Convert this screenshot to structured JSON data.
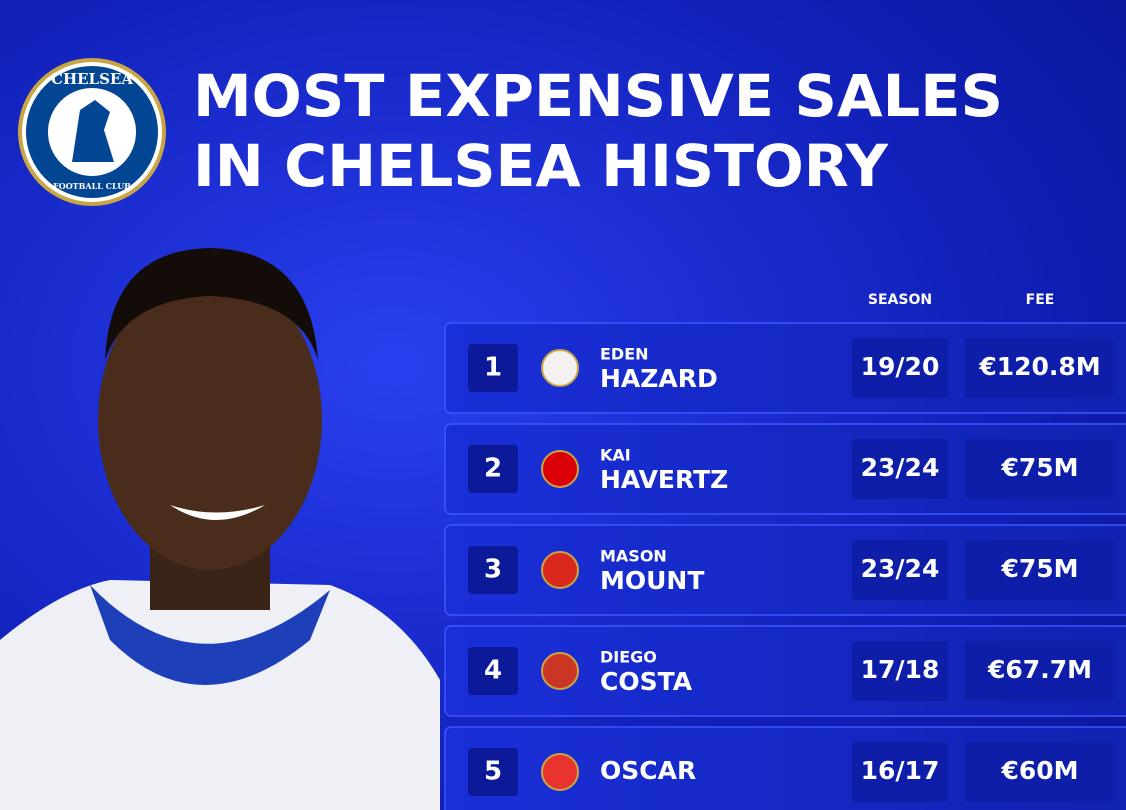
{
  "header": {
    "title_lines": [
      "MOST EXPENSIVE SALES",
      "IN CHELSEA HISTORY"
    ],
    "logo_top": "CHELSEA",
    "logo_bottom": "FOOTBALL CLUB"
  },
  "table": {
    "columns": [
      "SEASON",
      "FEE"
    ],
    "rows": [
      {
        "rank": "1",
        "first": "EDEN",
        "last": "HAZARD",
        "season": "19/20",
        "fee": "€120.8M"
      },
      {
        "rank": "2",
        "first": "KAI",
        "last": "HAVERTZ",
        "season": "23/24",
        "fee": "€75M"
      },
      {
        "rank": "3",
        "first": "MASON",
        "last": "MOUNT",
        "season": "23/24",
        "fee": "€75M"
      },
      {
        "rank": "4",
        "first": "DIEGO",
        "last": "COSTA",
        "season": "17/18",
        "fee": "€67.7M"
      },
      {
        "rank": "5",
        "last": "OSCAR",
        "season": "16/17",
        "fee": "€60M"
      }
    ]
  }
}
